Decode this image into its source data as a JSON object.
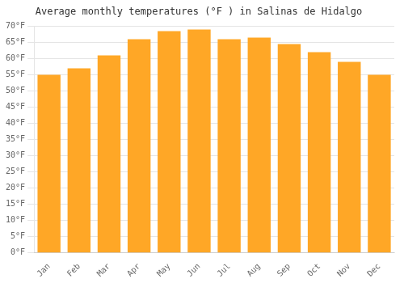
{
  "chart_data": {
    "type": "bar",
    "title": "Average monthly temperatures (°F ) in Salinas de Hidalgo",
    "categories": [
      "Jan",
      "Feb",
      "Mar",
      "Apr",
      "May",
      "Jun",
      "Jul",
      "Aug",
      "Sep",
      "Oct",
      "Nov",
      "Dec"
    ],
    "values": [
      55,
      57,
      61,
      66,
      68.5,
      69,
      66,
      66.5,
      64.5,
      62,
      59,
      55
    ],
    "color": "#FFA726",
    "ylim": [
      0,
      70
    ],
    "yticks": [
      {
        "value": 0,
        "label": "0°F"
      },
      {
        "value": 5,
        "label": "5°F"
      },
      {
        "value": 10,
        "label": "10°F"
      },
      {
        "value": 15,
        "label": "15°F"
      },
      {
        "value": 20,
        "label": "20°F"
      },
      {
        "value": 25,
        "label": "25°F"
      },
      {
        "value": 30,
        "label": "30°F"
      },
      {
        "value": 35,
        "label": "35°F"
      },
      {
        "value": 40,
        "label": "40°F"
      },
      {
        "value": 45,
        "label": "45°F"
      },
      {
        "value": 50,
        "label": "50°F"
      },
      {
        "value": 55,
        "label": "55°F"
      },
      {
        "value": 60,
        "label": "60°F"
      },
      {
        "value": 65,
        "label": "65°F"
      },
      {
        "value": 70,
        "label": "70°F"
      }
    ],
    "grid": true
  }
}
